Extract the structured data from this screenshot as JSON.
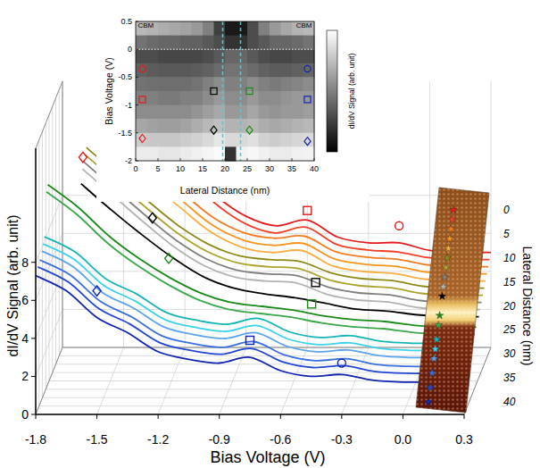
{
  "chart_data": [
    {
      "type": "waterfall",
      "xlabel": "Bias Voltage (V)",
      "ylabel": "dI/dV Signal (arb. unit)",
      "zlabel": "Lateral Distance (nm)",
      "xlim": [
        -1.8,
        0.3
      ],
      "xticks": [
        -1.8,
        -1.5,
        -1.2,
        -0.9,
        -0.6,
        -0.3,
        {
          "value": 0,
          "label": "0.0"
        },
        0.3
      ],
      "ylim": [
        0,
        14
      ],
      "yticks": [
        0,
        2,
        4,
        6,
        8
      ],
      "zlim": [
        0,
        40
      ],
      "zticks": [
        0,
        5,
        10,
        15,
        20,
        25,
        30,
        35,
        40
      ],
      "grid": true,
      "x": [
        -1.8,
        -1.65,
        -1.5,
        -1.35,
        -1.2,
        -1.05,
        -0.9,
        -0.75,
        -0.6,
        -0.45,
        -0.3,
        -0.15,
        0,
        0.15,
        0.3
      ],
      "series": [
        {
          "z": 0,
          "color": "#e41a1c",
          "values": [
            null,
            null,
            null,
            10.8,
            9.6,
            8.0,
            6.9,
            6.4,
            6.7,
            5.8,
            5.5,
            5.5,
            5.1,
            5.0,
            5.0
          ]
        },
        {
          "z": 2,
          "color": "#f0402a",
          "values": [
            null,
            null,
            null,
            10.6,
            9.4,
            7.8,
            6.7,
            6.2,
            6.5,
            5.6,
            5.3,
            5.2,
            4.9,
            4.8,
            4.8
          ]
        },
        {
          "z": 4,
          "color": "#f57b20",
          "values": [
            null,
            null,
            11.2,
            9.8,
            8.5,
            7.2,
            6.4,
            6.1,
            6.2,
            5.4,
            5.1,
            5.0,
            4.7,
            4.6,
            4.6
          ]
        },
        {
          "z": 6,
          "color": "#f7941e",
          "values": [
            null,
            null,
            11.0,
            9.6,
            8.3,
            7.0,
            6.2,
            5.9,
            6.0,
            5.2,
            4.9,
            4.8,
            4.5,
            4.4,
            4.4
          ]
        },
        {
          "z": 8,
          "color": "#f9ad3f",
          "values": [
            null,
            null,
            10.8,
            9.4,
            8.1,
            6.8,
            6.0,
            5.7,
            5.8,
            5.0,
            4.7,
            4.6,
            4.3,
            4.2,
            4.2
          ]
        },
        {
          "z": 10,
          "color": "#8e8a1a",
          "values": [
            null,
            11.4,
            10.0,
            8.6,
            7.3,
            6.3,
            5.7,
            5.5,
            5.4,
            4.8,
            4.5,
            4.4,
            4.1,
            4.0,
            4.0
          ]
        },
        {
          "z": 12,
          "color": "#aaa42e",
          "values": [
            null,
            11.2,
            9.8,
            8.4,
            7.1,
            6.1,
            5.5,
            5.3,
            5.2,
            4.6,
            4.3,
            4.2,
            3.9,
            3.8,
            3.8
          ]
        },
        {
          "z": 14,
          "color": "#7f7f7f",
          "values": [
            null,
            11.0,
            9.6,
            8.2,
            6.9,
            5.9,
            5.3,
            5.1,
            5.0,
            4.4,
            4.1,
            4.0,
            3.7,
            3.6,
            3.6
          ]
        },
        {
          "z": 16,
          "color": "#b3b3b3",
          "values": [
            null,
            10.8,
            9.4,
            8.0,
            6.7,
            5.7,
            5.1,
            4.9,
            4.8,
            4.2,
            3.9,
            3.8,
            3.5,
            3.4,
            3.4
          ]
        },
        {
          "z": 18,
          "color": "#000000",
          "values": [
            null,
            10.2,
            8.8,
            7.5,
            6.3,
            5.3,
            4.7,
            4.4,
            4.2,
            3.9,
            3.6,
            3.5,
            3.3,
            3.2,
            3.2
          ]
        },
        {
          "z": 22,
          "color": "#1a8a1a",
          "values": [
            10.5,
            9.3,
            7.8,
            6.6,
            5.6,
            4.8,
            4.3,
            4.1,
            3.9,
            3.6,
            3.4,
            3.3,
            3.1,
            3.0,
            3.0
          ]
        },
        {
          "z": 24,
          "color": "#3aa84a",
          "values": [
            10.3,
            9.1,
            7.6,
            6.4,
            5.4,
            4.6,
            4.1,
            3.9,
            3.7,
            3.4,
            3.2,
            3.1,
            2.9,
            2.8,
            2.8
          ]
        },
        {
          "z": 27,
          "color": "#13b5b5",
          "values": [
            8.2,
            7.4,
            6.0,
            5.2,
            4.2,
            3.8,
            3.6,
            3.9,
            3.2,
            2.9,
            3.0,
            2.7,
            2.6,
            2.6,
            2.6
          ]
        },
        {
          "z": 29,
          "color": "#3cd2ea",
          "values": [
            8.0,
            7.2,
            5.8,
            5.0,
            4.0,
            3.6,
            3.4,
            3.7,
            3.0,
            2.7,
            2.8,
            2.5,
            2.4,
            2.4,
            2.4
          ]
        },
        {
          "z": 31,
          "color": "#5ba3ee",
          "values": [
            7.8,
            7.0,
            5.6,
            4.8,
            3.8,
            3.4,
            3.2,
            3.5,
            2.8,
            2.5,
            2.6,
            2.3,
            2.2,
            2.2,
            2.2
          ]
        },
        {
          "z": 34,
          "color": "#3a6fe0",
          "values": [
            7.6,
            6.8,
            5.4,
            4.6,
            3.6,
            3.2,
            3.0,
            3.3,
            2.6,
            2.3,
            2.4,
            2.1,
            2.0,
            2.0,
            2.0
          ]
        },
        {
          "z": 37,
          "color": "#2246d4",
          "values": [
            7.5,
            6.7,
            5.3,
            4.5,
            3.5,
            3.1,
            2.9,
            3.2,
            2.5,
            2.2,
            2.3,
            2.0,
            1.9,
            1.9,
            1.9
          ]
        },
        {
          "z": 40,
          "color": "#1024b0",
          "values": [
            7.3,
            6.5,
            5.1,
            4.3,
            3.3,
            2.9,
            2.7,
            3.0,
            2.3,
            2.0,
            2.1,
            1.8,
            1.7,
            1.7,
            1.7
          ]
        }
      ],
      "annotations": [
        {
          "marker": "diamond",
          "x": -1.7,
          "y": 10.0,
          "z": 0,
          "color": "#e41a1c"
        },
        {
          "marker": "square",
          "x": -0.6,
          "y": 7.2,
          "z": 0,
          "color": "#e41a1c"
        },
        {
          "marker": "circle",
          "x": -0.15,
          "y": 6.4,
          "z": 0,
          "color": "#e41a1c"
        },
        {
          "marker": "diamond",
          "x": -1.3,
          "y": 8.4,
          "z": 18,
          "color": "#000000"
        },
        {
          "marker": "square",
          "x": -0.5,
          "y": 5.0,
          "z": 18,
          "color": "#000000"
        },
        {
          "marker": "diamond",
          "x": -1.2,
          "y": 6.8,
          "z": 24,
          "color": "#1a8a1a"
        },
        {
          "marker": "square",
          "x": -0.5,
          "y": 4.4,
          "z": 24,
          "color": "#1a8a1a"
        },
        {
          "marker": "diamond",
          "x": -1.5,
          "y": 6.5,
          "z": 40,
          "color": "#1024b0"
        },
        {
          "marker": "square",
          "x": -0.75,
          "y": 3.9,
          "z": 40,
          "color": "#1024b0"
        },
        {
          "marker": "circle",
          "x": -0.3,
          "y": 2.7,
          "z": 40,
          "color": "#1024b0"
        }
      ]
    },
    {
      "type": "heatmap",
      "xlabel": "Lateral Distance (nm)",
      "ylabel": "Bias Voltage (V)",
      "xlim": [
        0,
        40
      ],
      "xticks": [
        0,
        5,
        10,
        15,
        20,
        25,
        30,
        35,
        40
      ],
      "ylim": [
        -2,
        0.5
      ],
      "yticks": [
        0.5,
        0,
        -0.5,
        -1,
        -1.5,
        -2
      ],
      "x_edges": [
        0,
        2.5,
        5,
        7.5,
        10,
        12.5,
        15,
        17.5,
        20,
        22.5,
        25,
        27.5,
        30,
        32.5,
        35,
        37.5,
        40
      ],
      "y_edges": [
        0.5,
        0.25,
        0,
        -0.25,
        -0.5,
        -0.75,
        -1,
        -1.25,
        -1.5,
        -1.75,
        -2
      ],
      "cells": [
        [
          0.72,
          0.7,
          0.68,
          0.66,
          0.64,
          0.6,
          0.5,
          0.25,
          0.1,
          0.1,
          0.3,
          0.5,
          0.6,
          0.66,
          0.7,
          0.72
        ],
        [
          0.45,
          0.42,
          0.4,
          0.4,
          0.38,
          0.38,
          0.35,
          0.3,
          0.2,
          0.2,
          0.3,
          0.35,
          0.4,
          0.4,
          0.42,
          0.45
        ],
        [
          0.3,
          0.3,
          0.28,
          0.28,
          0.28,
          0.28,
          0.3,
          0.35,
          0.4,
          0.4,
          0.35,
          0.3,
          0.28,
          0.28,
          0.3,
          0.3
        ],
        [
          0.38,
          0.36,
          0.35,
          0.35,
          0.35,
          0.36,
          0.38,
          0.42,
          0.45,
          0.45,
          0.42,
          0.38,
          0.36,
          0.36,
          0.38,
          0.4
        ],
        [
          0.45,
          0.44,
          0.43,
          0.43,
          0.43,
          0.45,
          0.5,
          0.55,
          0.5,
          0.5,
          0.55,
          0.5,
          0.48,
          0.5,
          0.52,
          0.55
        ],
        [
          0.5,
          0.5,
          0.48,
          0.48,
          0.5,
          0.5,
          0.55,
          0.6,
          0.55,
          0.55,
          0.6,
          0.55,
          0.55,
          0.58,
          0.6,
          0.6
        ],
        [
          0.55,
          0.55,
          0.55,
          0.55,
          0.55,
          0.58,
          0.62,
          0.66,
          0.6,
          0.6,
          0.65,
          0.6,
          0.58,
          0.6,
          0.6,
          0.62
        ],
        [
          0.65,
          0.63,
          0.62,
          0.62,
          0.64,
          0.68,
          0.72,
          0.75,
          0.7,
          0.7,
          0.72,
          0.68,
          0.66,
          0.68,
          0.7,
          0.72
        ],
        [
          0.8,
          0.78,
          0.78,
          0.78,
          0.8,
          0.82,
          0.85,
          0.9,
          0.85,
          0.85,
          0.88,
          0.82,
          0.8,
          0.82,
          0.84,
          0.85
        ],
        [
          0.92,
          0.92,
          0.9,
          0.9,
          0.92,
          0.94,
          0.96,
          0.98,
          0.2,
          0.95,
          0.97,
          0.94,
          0.92,
          0.92,
          0.94,
          0.95
        ]
      ],
      "colorbar": {
        "label": "dI/dV Signal (arb. unit)",
        "range": [
          0,
          1
        ]
      },
      "texts": [
        {
          "text": "CBM",
          "x": 0.5,
          "y": 0.42
        },
        {
          "text": "CBM",
          "x": 39.5,
          "y": 0.42
        }
      ],
      "vlines": [
        19.5,
        23.5
      ],
      "hlines": [
        0
      ],
      "annotations": [
        {
          "marker": "circle",
          "x": 1.5,
          "y": -0.35,
          "color": "#e41a1c"
        },
        {
          "marker": "square",
          "x": 1.5,
          "y": -0.9,
          "color": "#e41a1c"
        },
        {
          "marker": "diamond",
          "x": 1.5,
          "y": -1.6,
          "color": "#e41a1c"
        },
        {
          "marker": "square",
          "x": 17.5,
          "y": -0.75,
          "color": "#000000"
        },
        {
          "marker": "diamond",
          "x": 17.5,
          "y": -1.45,
          "color": "#000000"
        },
        {
          "marker": "square",
          "x": 25.5,
          "y": -0.75,
          "color": "#1a8a1a"
        },
        {
          "marker": "diamond",
          "x": 25.5,
          "y": -1.45,
          "color": "#1a8a1a"
        },
        {
          "marker": "circle",
          "x": 38.5,
          "y": -0.35,
          "color": "#1024b0"
        },
        {
          "marker": "square",
          "x": 38.5,
          "y": -0.9,
          "color": "#1024b0"
        },
        {
          "marker": "diamond",
          "x": 38.5,
          "y": -1.65,
          "color": "#1024b0"
        }
      ]
    }
  ]
}
